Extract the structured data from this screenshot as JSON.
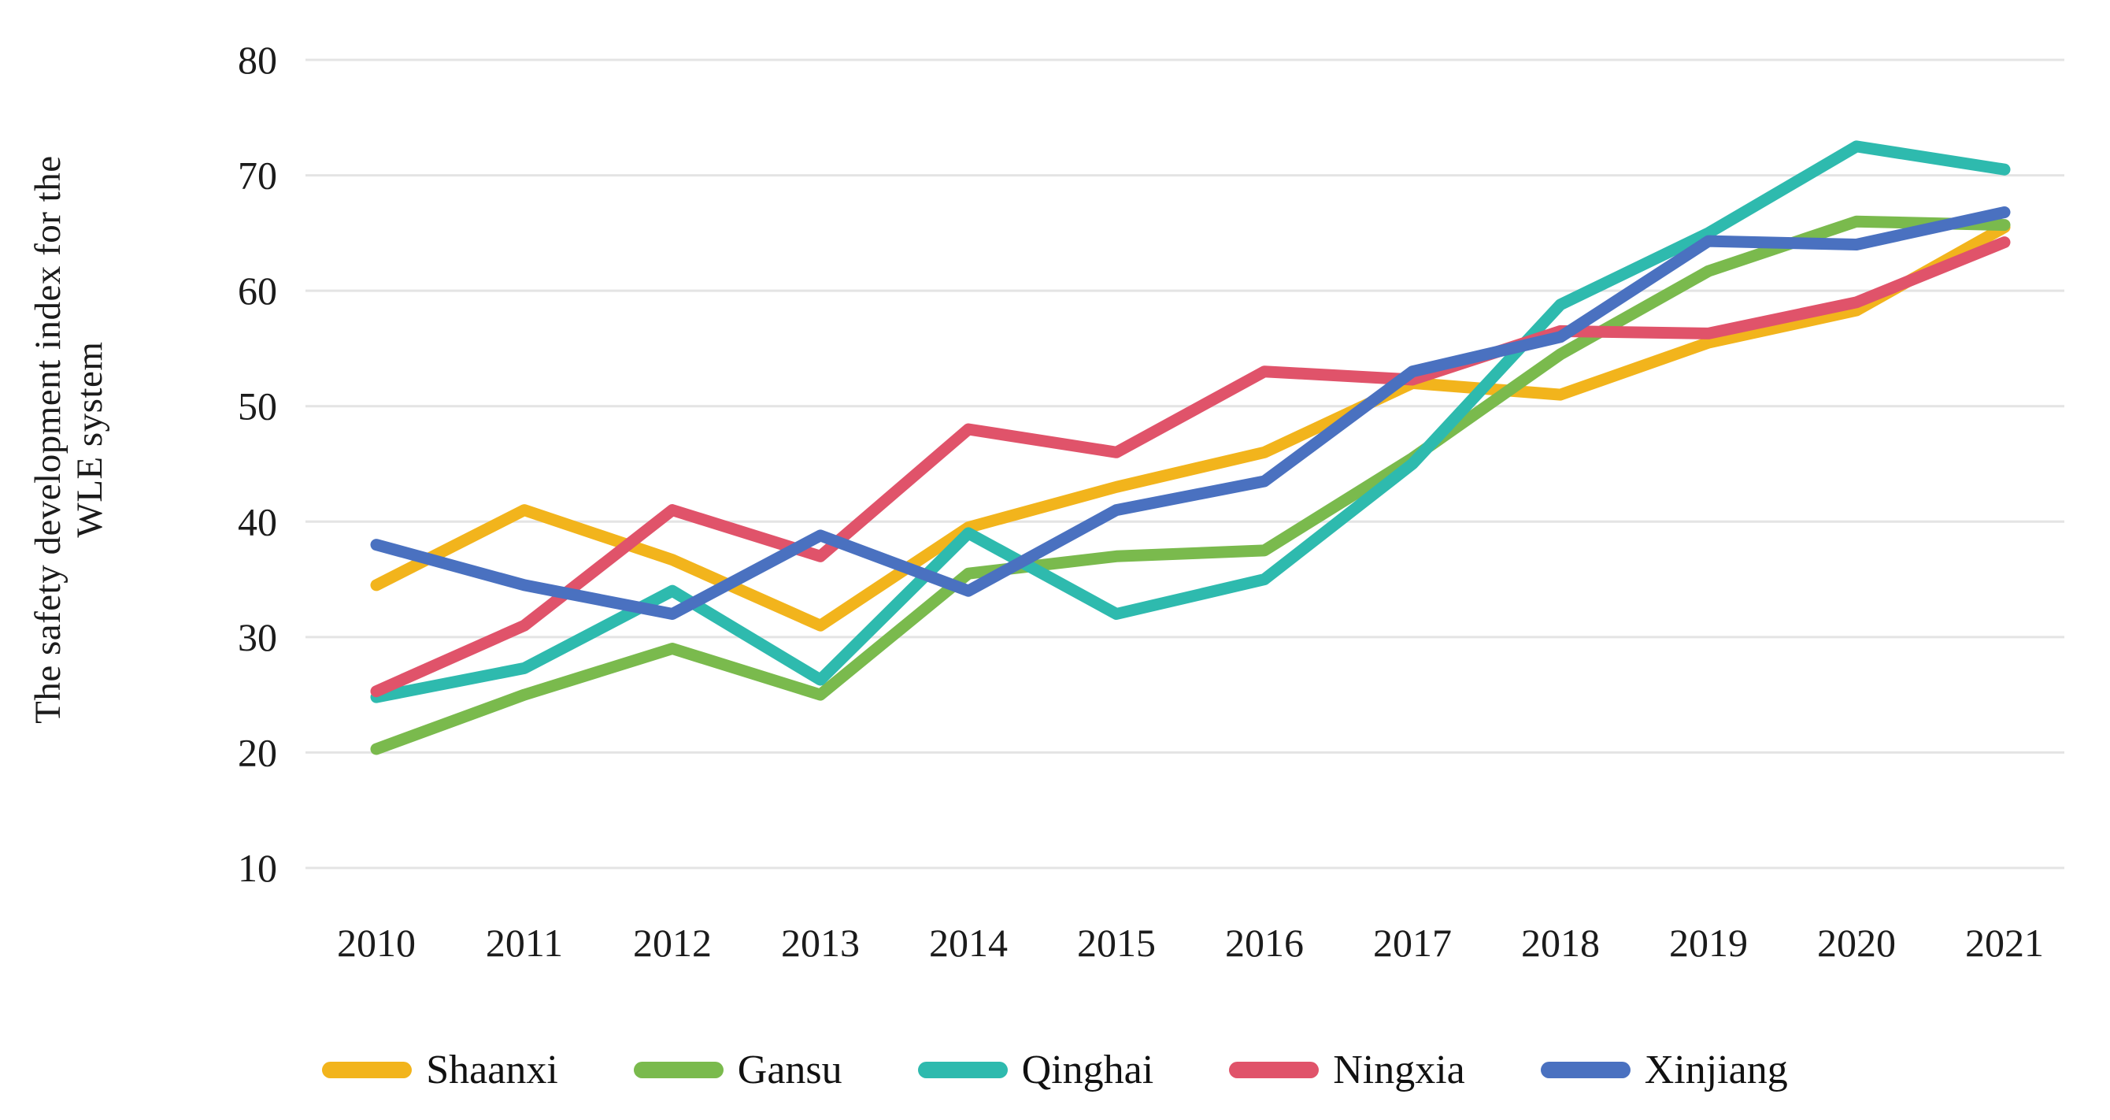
{
  "figure_title": "",
  "y_axis": {
    "title_lines": [
      "The safety development index for the",
      "WLE system"
    ],
    "ticks": [
      10,
      20,
      30,
      40,
      50,
      60,
      70,
      80
    ],
    "min": 10,
    "max": 80
  },
  "x_axis": {
    "categories": [
      "2010",
      "2011",
      "2012",
      "2013",
      "2014",
      "2015",
      "2016",
      "2017",
      "2018",
      "2019",
      "2020",
      "2021"
    ]
  },
  "chart_data": {
    "type": "line",
    "title": "",
    "xlabel": "",
    "ylabel": "The safety development index for the WLE system",
    "ylim": [
      10,
      80
    ],
    "ytick_interval": 10,
    "grid": true,
    "legend_position": "bottom",
    "categories": [
      "2010",
      "2011",
      "2012",
      "2013",
      "2014",
      "2015",
      "2016",
      "2017",
      "2018",
      "2019",
      "2020",
      "2021"
    ],
    "series": [
      {
        "name": "Shaanxi",
        "color": "#F2B41C",
        "values": [
          34.5,
          41.0,
          36.7,
          31.0,
          39.5,
          43.0,
          46.0,
          52.0,
          51.0,
          55.5,
          58.3,
          65.5
        ]
      },
      {
        "name": "Gansu",
        "color": "#7ABA4D",
        "values": [
          20.3,
          25.0,
          29.0,
          25.0,
          35.5,
          37.0,
          37.5,
          45.5,
          54.5,
          61.7,
          66.0,
          65.7
        ]
      },
      {
        "name": "Qinghai",
        "color": "#2EBAAE",
        "values": [
          24.8,
          27.3,
          34.0,
          26.3,
          39.0,
          32.0,
          35.0,
          45.0,
          58.8,
          65.0,
          72.5,
          70.5
        ]
      },
      {
        "name": "Ningxia",
        "color": "#E0536A",
        "values": [
          25.3,
          31.0,
          41.0,
          37.0,
          48.0,
          46.0,
          53.0,
          52.3,
          56.5,
          56.3,
          59.0,
          64.2
        ]
      },
      {
        "name": "Xinjiang",
        "color": "#4A71C0",
        "values": [
          38.0,
          34.5,
          32.0,
          38.8,
          34.0,
          41.0,
          43.5,
          53.0,
          56.0,
          64.3,
          64.0,
          66.8
        ]
      }
    ]
  },
  "styles": {
    "grid_color": "#E4E4E4",
    "text_color": "#1B1B1B",
    "background": "#FFFFFF"
  }
}
